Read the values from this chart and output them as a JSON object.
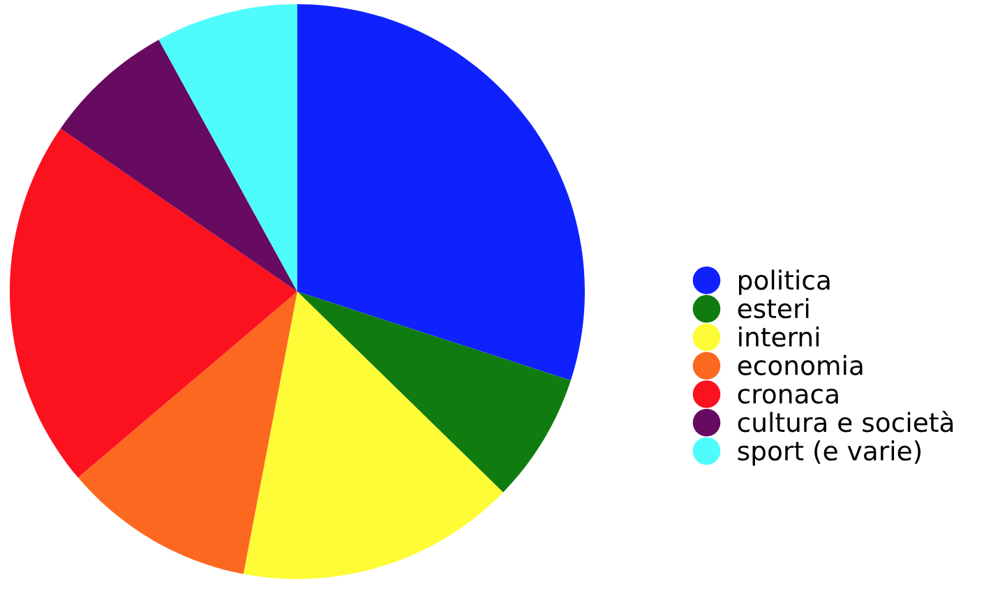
{
  "chart_data": {
    "type": "pie",
    "categories": [
      "politica",
      "esteri",
      "interni",
      "economia",
      "cronaca",
      "cultura e società",
      "sport (e varie)"
    ],
    "values": [
      30.0,
      7.3,
      15.7,
      10.8,
      20.8,
      7.4,
      8.0
    ],
    "colors": [
      "#0f22fe",
      "#107c10",
      "#fefb37",
      "#fc6820",
      "#fc111f",
      "#670b60",
      "#4efcfc"
    ],
    "legend": "right"
  }
}
